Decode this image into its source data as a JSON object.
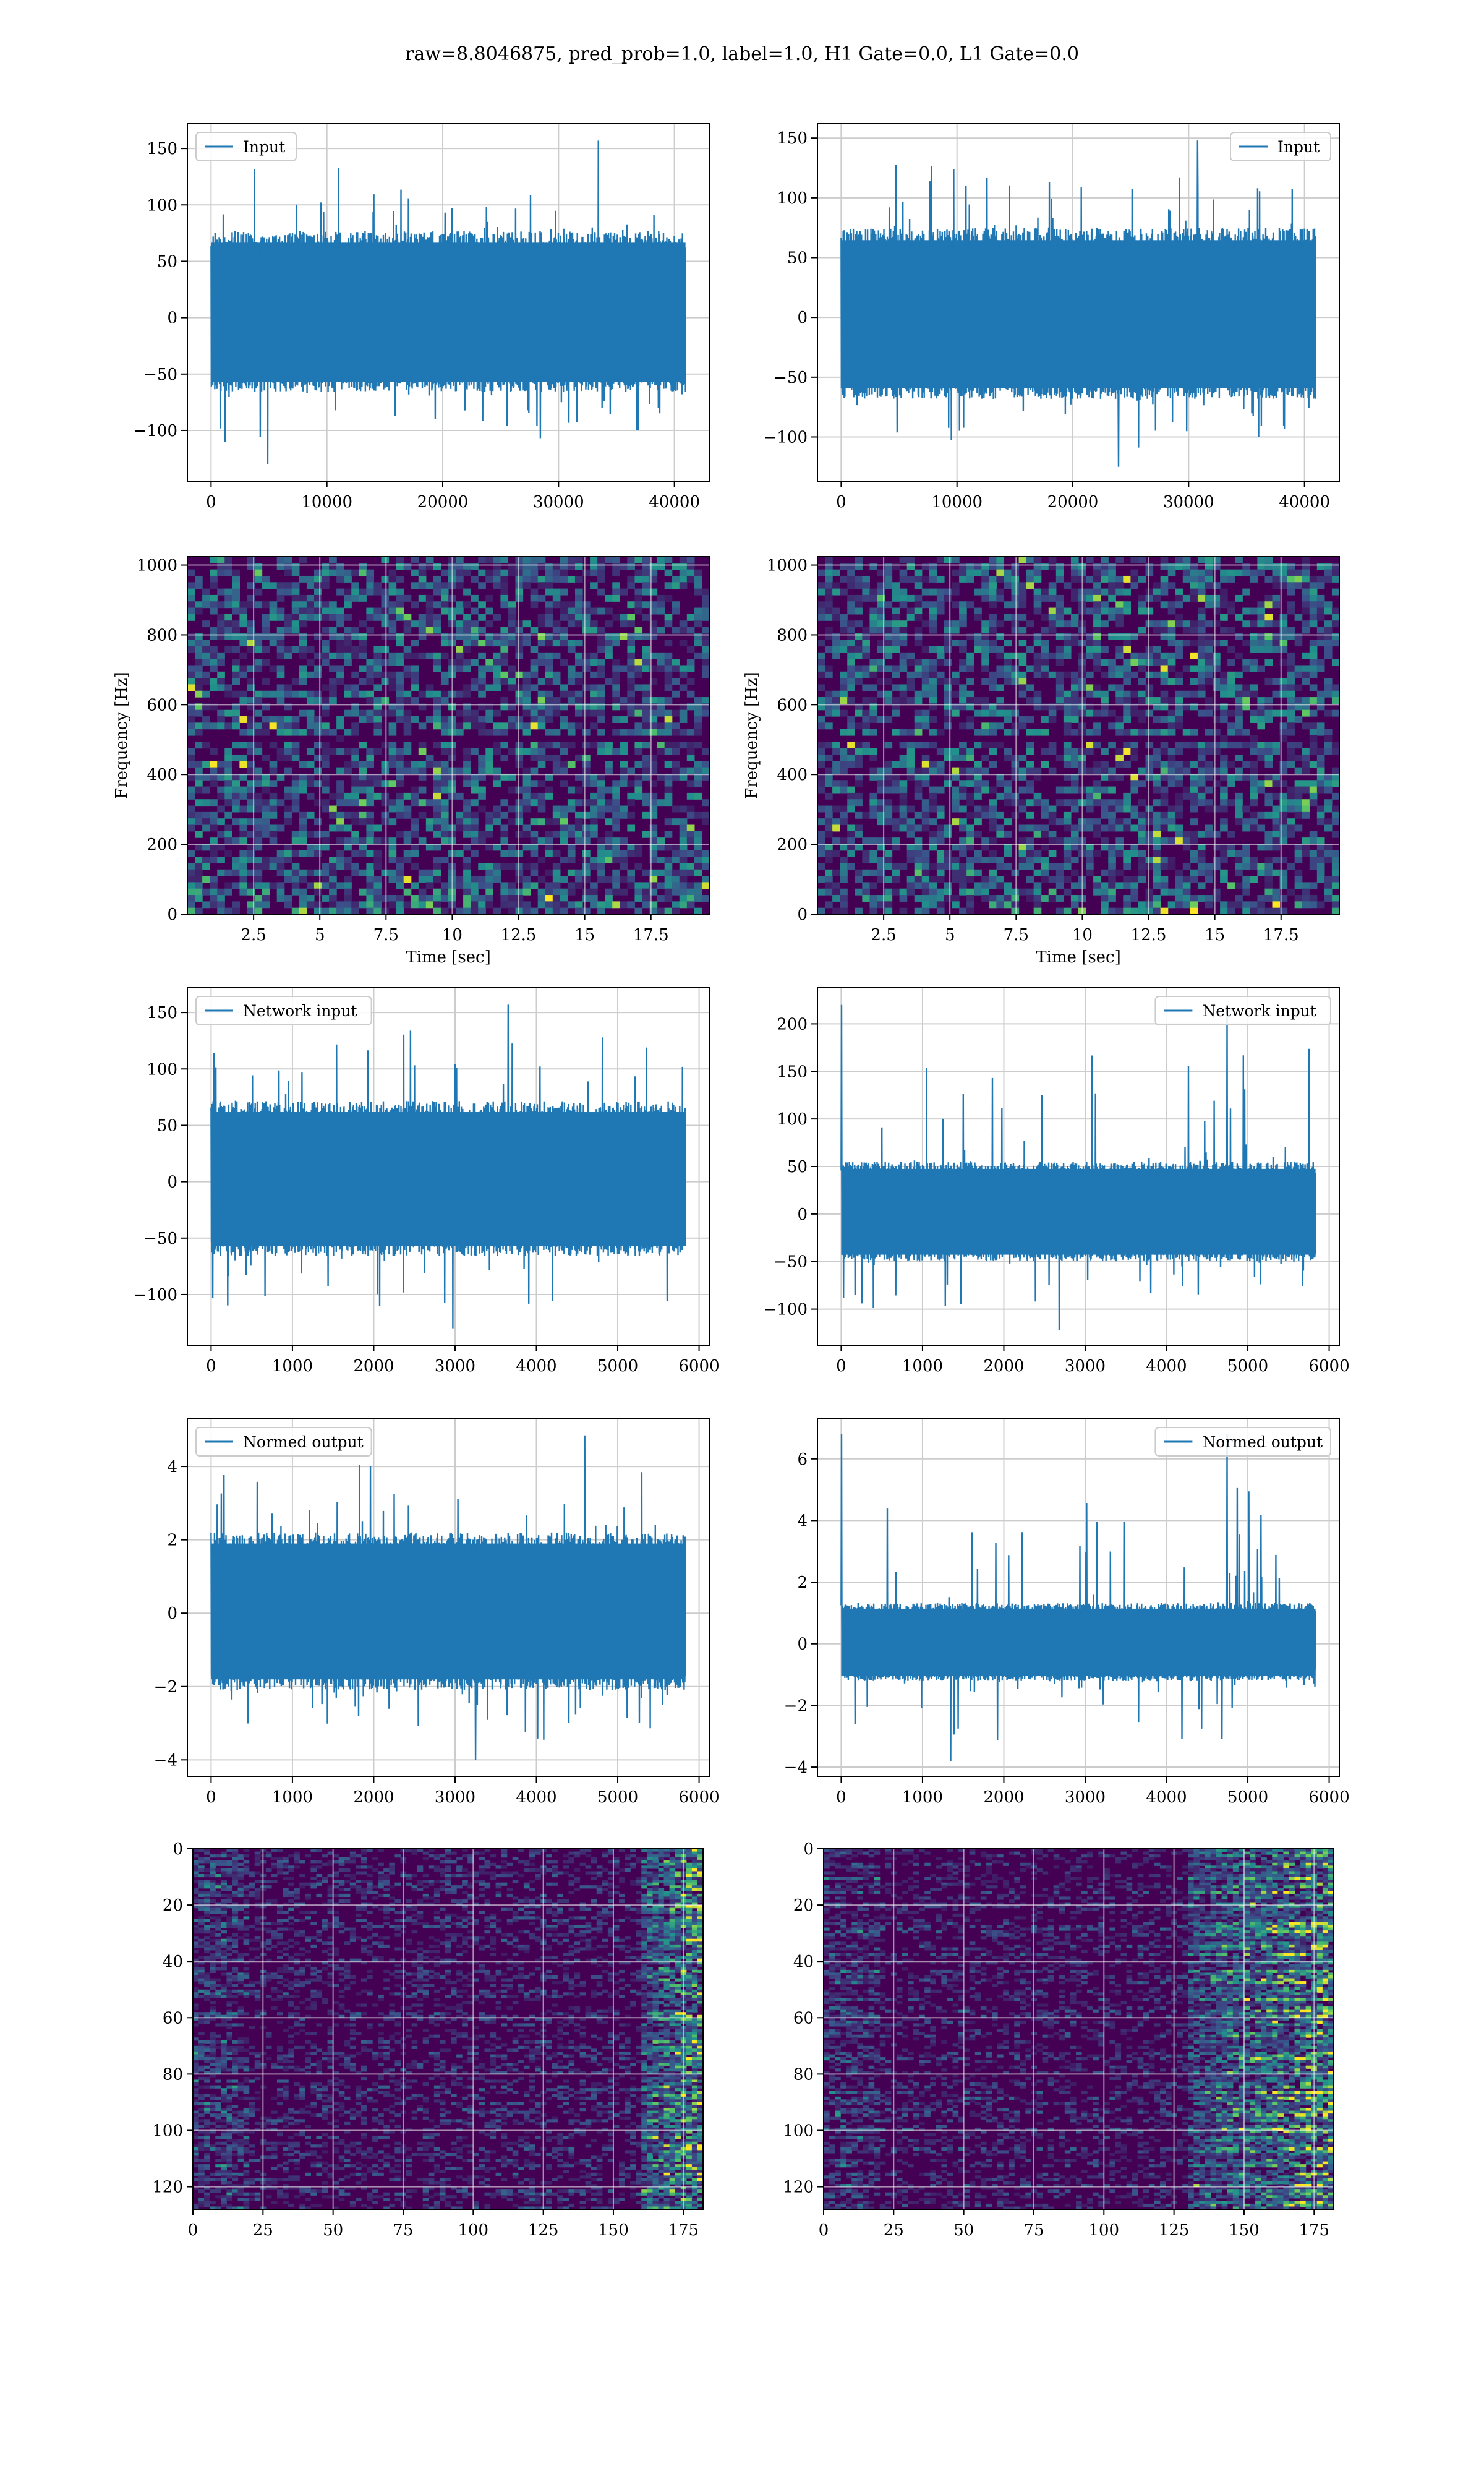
{
  "figure": {
    "suptitle": "raw=8.8046875, pred_prob=1.0, label=1.0, H1 Gate=0.0, L1 Gate=0.0",
    "colors": {
      "line": "#1f77b4",
      "viridis_dark": "#440154",
      "viridis_mid": "#21918c",
      "viridis_bright": "#fde725",
      "grid": "#cccccc"
    }
  },
  "chart_data": [
    {
      "id": "input-h1",
      "type": "line",
      "panel": "row1-left",
      "series": [
        {
          "name": "Input",
          "x_range": [
            0,
            40960
          ],
          "envelope": [
            -60,
            70
          ],
          "peak_max": 157,
          "peak_min": -130
        }
      ],
      "legend": "upper left",
      "grid": true,
      "xlim": [
        -2048,
        43008
      ],
      "ylim": [
        -145,
        172
      ],
      "xticks": [
        0,
        10000,
        20000,
        30000,
        40000
      ],
      "yticks": [
        -100,
        -50,
        0,
        50,
        100,
        150
      ],
      "xlabel": "",
      "ylabel": ""
    },
    {
      "id": "input-l1",
      "type": "line",
      "panel": "row1-right",
      "series": [
        {
          "name": "Input",
          "x_range": [
            0,
            40960
          ],
          "envelope": [
            -62,
            68
          ],
          "peak_max": 148,
          "peak_min": -125
        }
      ],
      "legend": "upper right",
      "grid": true,
      "xlim": [
        -2048,
        43008
      ],
      "ylim": [
        -137,
        162
      ],
      "xticks": [
        0,
        10000,
        20000,
        30000,
        40000
      ],
      "yticks": [
        -100,
        -50,
        0,
        50,
        100,
        150
      ],
      "xlabel": "",
      "ylabel": ""
    },
    {
      "id": "spec-h1",
      "type": "heatmap",
      "panel": "row2-left",
      "colormap": "viridis",
      "grid": true,
      "xlim": [
        0,
        19.7
      ],
      "ylim": [
        0,
        1024
      ],
      "xticks": [
        2.5,
        5.0,
        7.5,
        10.0,
        12.5,
        15.0,
        17.5
      ],
      "yticks": [
        0,
        200,
        400,
        600,
        800,
        1000
      ],
      "xlabel": "Time [sec]",
      "ylabel": "Frequency [Hz]",
      "dark_band_hz": [
        490,
        520
      ]
    },
    {
      "id": "spec-l1",
      "type": "heatmap",
      "panel": "row2-right",
      "colormap": "viridis",
      "grid": true,
      "xlim": [
        0,
        19.7
      ],
      "ylim": [
        0,
        1024
      ],
      "xticks": [
        2.5,
        5.0,
        7.5,
        10.0,
        12.5,
        15.0,
        17.5
      ],
      "yticks": [
        0,
        200,
        400,
        600,
        800,
        1000
      ],
      "xlabel": "Time [sec]",
      "ylabel": "Frequency [Hz]",
      "dark_band_hz": [
        490,
        520
      ]
    },
    {
      "id": "net-h1",
      "type": "line",
      "panel": "row3-left",
      "series": [
        {
          "name": "Network input",
          "x_range": [
            0,
            5833
          ],
          "envelope": [
            -60,
            65
          ],
          "peak_max": 157,
          "peak_min": -130
        }
      ],
      "legend": "upper left",
      "grid": true,
      "xlim": [
        -292,
        6125
      ],
      "ylim": [
        -145,
        172
      ],
      "xticks": [
        0,
        1000,
        2000,
        3000,
        4000,
        5000,
        6000
      ],
      "yticks": [
        -100,
        -50,
        0,
        50,
        100,
        150
      ],
      "xlabel": "",
      "ylabel": ""
    },
    {
      "id": "net-l1",
      "type": "line",
      "panel": "row3-right",
      "series": [
        {
          "name": "Network input",
          "x_range": [
            0,
            5833
          ],
          "envelope": [
            -45,
            50
          ],
          "peak_max": 220,
          "peak_min": -122
        }
      ],
      "legend": "upper right",
      "grid": true,
      "xlim": [
        -292,
        6125
      ],
      "ylim": [
        -138,
        238
      ],
      "xticks": [
        0,
        1000,
        2000,
        3000,
        4000,
        5000,
        6000
      ],
      "yticks": [
        -100,
        -50,
        0,
        50,
        100,
        150,
        200
      ],
      "xlabel": "",
      "ylabel": ""
    },
    {
      "id": "normed-h1",
      "type": "line",
      "panel": "row4-left",
      "series": [
        {
          "name": "Normed output",
          "x_range": [
            0,
            5833
          ],
          "envelope": [
            -1.9,
            2.0
          ],
          "peak_max": 4.85,
          "peak_min": -4.0
        }
      ],
      "legend": "upper left",
      "grid": true,
      "xlim": [
        -292,
        6125
      ],
      "ylim": [
        -4.45,
        5.3
      ],
      "xticks": [
        0,
        1000,
        2000,
        3000,
        4000,
        5000,
        6000
      ],
      "yticks": [
        -4,
        -2,
        0,
        2,
        4
      ],
      "xlabel": "",
      "ylabel": ""
    },
    {
      "id": "normed-l1",
      "type": "line",
      "panel": "row4-right",
      "series": [
        {
          "name": "Normed output",
          "x_range": [
            0,
            5833
          ],
          "envelope": [
            -1.1,
            1.2
          ],
          "peak_max": 6.8,
          "peak_min": -3.8
        }
      ],
      "legend": "upper right",
      "grid": true,
      "xlim": [
        -292,
        6125
      ],
      "ylim": [
        -4.3,
        7.3
      ],
      "xticks": [
        0,
        1000,
        2000,
        3000,
        4000,
        5000,
        6000
      ],
      "yticks": [
        -4,
        -2,
        0,
        2,
        4,
        6
      ],
      "xlabel": "",
      "ylabel": ""
    },
    {
      "id": "features-h1",
      "type": "heatmap",
      "panel": "row5-left",
      "colormap": "viridis",
      "grid": true,
      "xlim": [
        0,
        182
      ],
      "ylim": [
        128,
        0
      ],
      "xticks": [
        0,
        25,
        50,
        75,
        100,
        125,
        150,
        175
      ],
      "yticks": [
        0,
        20,
        40,
        60,
        80,
        100,
        120
      ],
      "xlabel": "",
      "ylabel": "",
      "bright_region_x": [
        160,
        182
      ]
    },
    {
      "id": "features-l1",
      "type": "heatmap",
      "panel": "row5-right",
      "colormap": "viridis",
      "grid": true,
      "xlim": [
        0,
        182
      ],
      "ylim": [
        128,
        0
      ],
      "xticks": [
        0,
        25,
        50,
        75,
        100,
        125,
        150,
        175
      ],
      "yticks": [
        0,
        20,
        40,
        60,
        80,
        100,
        120
      ],
      "xlabel": "",
      "ylabel": "",
      "bright_region_x": [
        130,
        182
      ]
    }
  ]
}
